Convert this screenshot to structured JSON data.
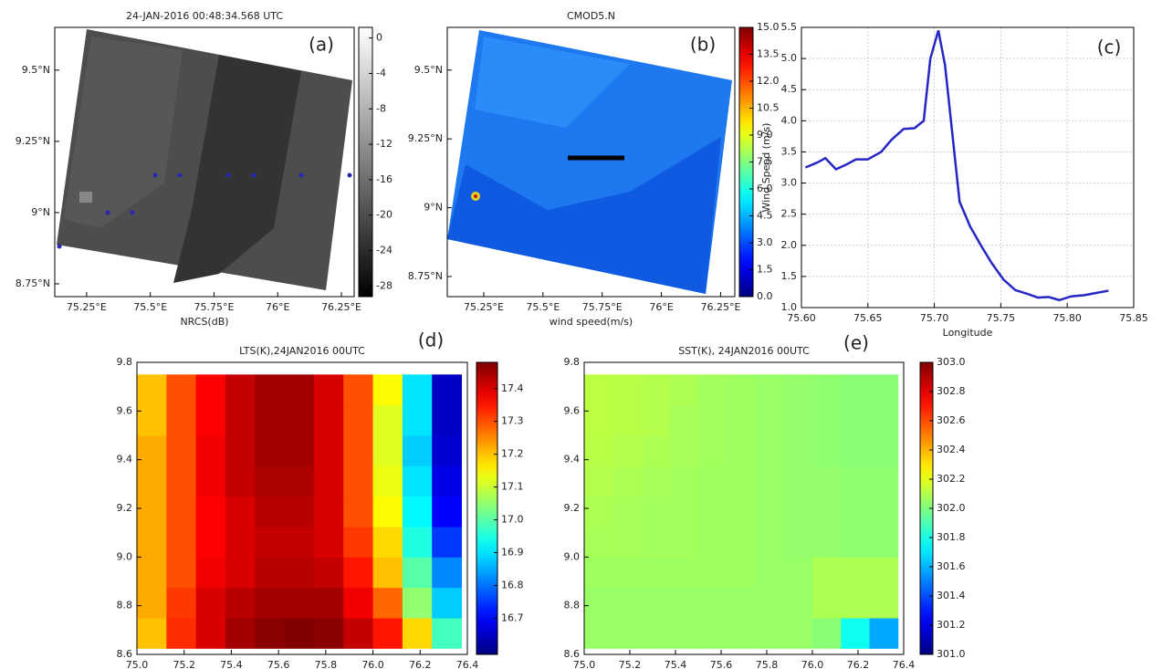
{
  "chart_data": [
    {
      "type": "image",
      "title": "24-JAN-2016 00:48:34.568 UTC",
      "panel_label": "(a)",
      "xlabel": "NRCS(dB)",
      "xlim": [
        75.125,
        76.3
      ],
      "ylim": [
        8.705,
        9.65
      ],
      "xticks": [
        {
          "value": 75.25,
          "label": "75.25°E"
        },
        {
          "value": 75.5,
          "label": "75.5°E"
        },
        {
          "value": 75.75,
          "label": "75.75°E"
        },
        {
          "value": 76,
          "label": "76°E"
        },
        {
          "value": 76.25,
          "label": "76.25°E"
        }
      ],
      "yticks": [
        {
          "value": 8.75,
          "label": "8.75°N"
        },
        {
          "value": 9,
          "label": "9°N"
        },
        {
          "value": 9.25,
          "label": "9.25°N"
        },
        {
          "value": 9.5,
          "label": "9.5°N"
        }
      ],
      "colormap": "gray",
      "clim": [
        -29.2,
        1.2
      ],
      "colorbar_ticks": [
        0,
        -4,
        -8,
        -12,
        -16,
        -20,
        -24,
        -28
      ]
    },
    {
      "type": "image",
      "title": "CMOD5.N",
      "panel_label": "(b)",
      "xlabel": "wind speed(m/s)",
      "xlim": [
        75.096,
        76.31
      ],
      "ylim": [
        8.677,
        9.655
      ],
      "xticks": [
        {
          "value": 75.25,
          "label": "75.25°E"
        },
        {
          "value": 75.5,
          "label": "75.5°E"
        },
        {
          "value": 75.75,
          "label": "75.75°E"
        },
        {
          "value": 76,
          "label": "76°E"
        },
        {
          "value": 76.25,
          "label": "76.25°E"
        }
      ],
      "yticks": [
        {
          "value": 8.75,
          "label": "8.75°N"
        },
        {
          "value": 9,
          "label": "9°N"
        },
        {
          "value": 9.25,
          "label": "9.25°N"
        },
        {
          "value": 9.5,
          "label": "9.5°N"
        }
      ],
      "colormap": "jet",
      "clim": [
        0,
        15
      ],
      "colorbar_ticks": [
        {
          "value": 0,
          "label": "0.0"
        },
        1.5,
        {
          "value": 3,
          "label": "3.0"
        },
        4.5,
        {
          "value": 6,
          "label": "6.0"
        },
        7.5,
        {
          "value": 9,
          "label": "9.0"
        },
        10.5,
        {
          "value": 12,
          "label": "12.0"
        },
        13.5,
        {
          "value": 15,
          "label": "15.0"
        }
      ]
    },
    {
      "type": "line",
      "panel_label": "(c)",
      "xlabel": "Longitude",
      "ylabel": "Wind Speed (m/s)",
      "color": "#2626c4",
      "grid": true,
      "x": [
        75.603,
        75.612,
        75.618,
        75.626,
        75.634,
        75.641,
        75.65,
        75.66,
        75.668,
        75.677,
        75.685,
        75.692,
        75.697,
        75.703,
        75.708,
        75.712,
        75.719,
        75.727,
        75.735,
        75.743,
        75.752,
        75.761,
        75.77,
        75.778,
        75.786,
        75.794,
        75.803,
        75.813,
        75.823,
        75.831
      ],
      "values": [
        3.25,
        3.33,
        3.4,
        3.22,
        3.3,
        3.38,
        3.38,
        3.5,
        3.7,
        3.87,
        3.88,
        4.0,
        5.0,
        5.45,
        4.9,
        4.1,
        2.7,
        2.3,
        2.0,
        1.72,
        1.45,
        1.28,
        1.22,
        1.16,
        1.17,
        1.12,
        1.18,
        1.2,
        1.24,
        1.27
      ],
      "xlim": [
        75.6,
        75.85
      ],
      "ylim": [
        1.0,
        5.5
      ],
      "xticks": [
        {
          "value": 75.6,
          "label": "75.60"
        },
        75.65,
        {
          "value": 75.7,
          "label": "75.70"
        },
        75.75,
        {
          "value": 75.8,
          "label": "75.80"
        },
        75.85
      ],
      "yticks": [
        {
          "value": 1,
          "label": "1.0"
        },
        1.5,
        {
          "value": 2,
          "label": "2.0"
        },
        2.5,
        {
          "value": 3,
          "label": "3.0"
        },
        3.5,
        {
          "value": 4,
          "label": "4.0"
        },
        4.5,
        {
          "value": 5,
          "label": "5.0"
        },
        5.5
      ]
    },
    {
      "type": "heatmap",
      "title": "LTS(K),24JAN2016 00UTC",
      "panel_label": "(d)",
      "xlim": [
        75.0,
        76.4
      ],
      "ylim": [
        8.6,
        9.8
      ],
      "xticks": [
        {
          "value": 75,
          "label": "75.0"
        },
        75.2,
        75.4,
        75.6,
        75.8,
        {
          "value": 76,
          "label": "76.0"
        },
        76.2,
        76.4
      ],
      "yticks": [
        8.6,
        8.8,
        {
          "value": 9,
          "label": "9.0"
        },
        9.2,
        9.4,
        9.6,
        9.8
      ],
      "x": [
        75.0625,
        75.1875,
        75.3125,
        75.4375,
        75.5625,
        75.6875,
        75.8125,
        75.9375,
        76.0625,
        76.1875,
        76.3125
      ],
      "y": [
        8.6875,
        8.8125,
        8.9375,
        9.0625,
        9.1875,
        9.3125,
        9.4375,
        9.5625,
        9.6875
      ],
      "z": [
        [
          17.2,
          17.33,
          17.4,
          17.45,
          17.47,
          17.48,
          17.47,
          17.42,
          17.35,
          17.18,
          16.98
        ],
        [
          17.22,
          17.32,
          17.4,
          17.43,
          17.45,
          17.45,
          17.45,
          17.38,
          17.28,
          17.05,
          16.88
        ],
        [
          17.22,
          17.3,
          17.38,
          17.4,
          17.43,
          17.43,
          17.42,
          17.35,
          17.2,
          17.0,
          16.82
        ],
        [
          17.22,
          17.3,
          17.37,
          17.4,
          17.42,
          17.42,
          17.4,
          17.32,
          17.18,
          16.95,
          16.75
        ],
        [
          17.22,
          17.3,
          17.37,
          17.4,
          17.43,
          17.43,
          17.4,
          17.3,
          17.15,
          16.92,
          16.7
        ],
        [
          17.22,
          17.3,
          17.38,
          17.42,
          17.44,
          17.44,
          17.4,
          17.3,
          17.13,
          16.9,
          16.68
        ],
        [
          17.22,
          17.3,
          17.38,
          17.42,
          17.45,
          17.45,
          17.4,
          17.3,
          17.12,
          16.88,
          16.66
        ],
        [
          17.2,
          17.3,
          17.37,
          17.42,
          17.45,
          17.45,
          17.4,
          17.3,
          17.12,
          16.9,
          16.65
        ],
        [
          17.2,
          17.3,
          17.37,
          17.42,
          17.45,
          17.45,
          17.4,
          17.3,
          17.15,
          16.9,
          16.65
        ]
      ],
      "colormap": "jet",
      "clim": [
        16.59,
        17.48
      ],
      "colorbar_ticks": [
        16.7,
        16.8,
        16.9,
        {
          "value": 17,
          "label": "17.0"
        },
        17.1,
        17.2,
        17.3,
        17.4
      ]
    },
    {
      "type": "heatmap",
      "title": "SST(K), 24JAN2016 00UTC",
      "panel_label": "(e)",
      "xlim": [
        75.0,
        76.4
      ],
      "ylim": [
        8.6,
        9.8
      ],
      "xticks": [
        {
          "value": 75,
          "label": "75.0"
        },
        75.2,
        75.4,
        75.6,
        75.8,
        {
          "value": 76,
          "label": "76.0"
        },
        76.2,
        76.4
      ],
      "yticks": [
        8.6,
        8.8,
        {
          "value": 9,
          "label": "9.0"
        },
        9.2,
        9.4,
        9.6,
        9.8
      ],
      "x": [
        75.0625,
        75.1875,
        75.3125,
        75.4375,
        75.5625,
        75.6875,
        75.8125,
        75.9375,
        76.0625,
        76.1875,
        76.3125
      ],
      "y": [
        8.6875,
        8.8125,
        8.9375,
        9.0625,
        9.1875,
        9.3125,
        9.4375,
        9.5625,
        9.6875
      ],
      "z": [
        [
          302.05,
          302.05,
          302.05,
          302.05,
          302.05,
          302.05,
          302.05,
          302.05,
          302.02,
          301.78,
          301.58
        ],
        [
          302.05,
          302.05,
          302.05,
          302.05,
          302.05,
          302.05,
          302.05,
          302.05,
          302.09,
          302.09,
          302.09
        ],
        [
          302.06,
          302.06,
          302.06,
          302.06,
          302.06,
          302.06,
          302.05,
          302.05,
          302.09,
          302.09,
          302.09
        ],
        [
          302.08,
          302.08,
          302.07,
          302.07,
          302.06,
          302.06,
          302.05,
          302.04,
          302.04,
          302.03,
          302.03
        ],
        [
          302.09,
          302.08,
          302.07,
          302.07,
          302.06,
          302.06,
          302.05,
          302.04,
          302.04,
          302.03,
          302.03
        ],
        [
          302.1,
          302.09,
          302.08,
          302.07,
          302.06,
          302.06,
          302.05,
          302.04,
          302.04,
          302.03,
          302.03
        ],
        [
          302.11,
          302.1,
          302.09,
          302.08,
          302.07,
          302.06,
          302.05,
          302.04,
          302.03,
          302.02,
          302.02
        ],
        [
          302.12,
          302.11,
          302.1,
          302.08,
          302.07,
          302.06,
          302.05,
          302.04,
          302.03,
          302.02,
          302.02
        ],
        [
          302.12,
          302.11,
          302.1,
          302.09,
          302.07,
          302.06,
          302.05,
          302.04,
          302.03,
          302.02,
          302.02
        ]
      ],
      "colormap": "jet",
      "clim": [
        301.0,
        303.0
      ],
      "colorbar_ticks": [
        {
          "value": 301,
          "label": "301.0"
        },
        301.2,
        301.4,
        301.6,
        301.8,
        {
          "value": 302,
          "label": "302.0"
        },
        302.2,
        302.4,
        302.6,
        302.8,
        {
          "value": 303,
          "label": "303.0"
        }
      ]
    }
  ]
}
